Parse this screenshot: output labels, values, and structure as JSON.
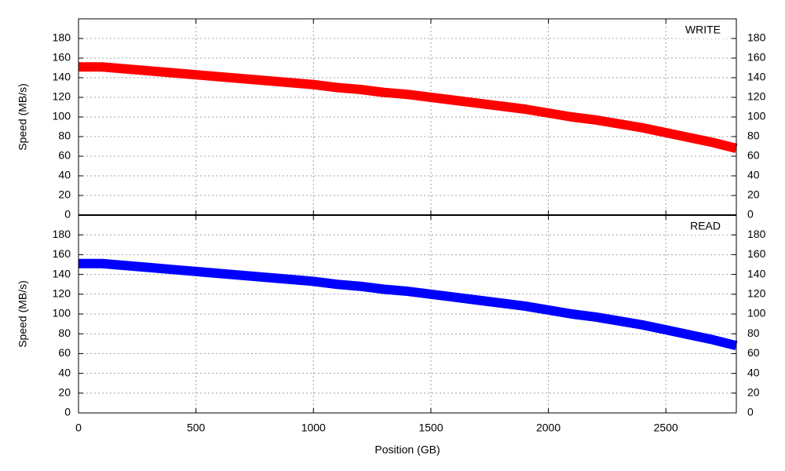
{
  "chart_data": [
    {
      "type": "line",
      "ylabel": "Speed (MB/s)",
      "x": [
        0,
        100,
        200,
        300,
        400,
        500,
        600,
        700,
        800,
        900,
        1000,
        1100,
        1200,
        1300,
        1400,
        1500,
        1600,
        1700,
        1800,
        1900,
        2000,
        2100,
        2200,
        2300,
        2400,
        2500,
        2600,
        2700,
        2800
      ],
      "series": [
        {
          "name": "WRITE",
          "color": "#ff0000",
          "values": [
            151,
            151,
            149,
            147,
            145,
            143,
            141,
            139,
            137,
            135,
            133,
            130,
            128,
            125,
            123,
            120,
            117,
            114,
            111,
            108,
            104,
            100,
            97,
            93,
            89,
            84,
            79,
            74,
            68
          ]
        }
      ],
      "xlim": [
        0,
        2800
      ],
      "xticks": [
        0,
        500,
        1000,
        1500,
        2000,
        2500
      ],
      "ylim": [
        0,
        200
      ],
      "yticks": [
        0,
        20,
        40,
        60,
        80,
        100,
        120,
        140,
        160,
        180
      ],
      "y2lim": [
        0,
        200
      ],
      "y2ticks": [
        0,
        20,
        40,
        60,
        80,
        100,
        120,
        140,
        160,
        180
      ],
      "grid": true,
      "legend": "upper right"
    },
    {
      "type": "line",
      "ylabel": "Speed (MB/s)",
      "xlabel": "Position (GB)",
      "x": [
        0,
        100,
        200,
        300,
        400,
        500,
        600,
        700,
        800,
        900,
        1000,
        1100,
        1200,
        1300,
        1400,
        1500,
        1600,
        1700,
        1800,
        1900,
        2000,
        2100,
        2200,
        2300,
        2400,
        2500,
        2600,
        2700,
        2800
      ],
      "series": [
        {
          "name": "READ",
          "color": "#0000ff",
          "values": [
            151,
            151,
            149,
            147,
            145,
            143,
            141,
            139,
            137,
            135,
            133,
            130,
            128,
            125,
            123,
            120,
            117,
            114,
            111,
            108,
            104,
            100,
            97,
            93,
            89,
            84,
            79,
            74,
            68
          ]
        }
      ],
      "xlim": [
        0,
        2800
      ],
      "xticks": [
        0,
        500,
        1000,
        1500,
        2000,
        2500
      ],
      "ylim": [
        0,
        200
      ],
      "yticks": [
        0,
        20,
        40,
        60,
        80,
        100,
        120,
        140,
        160,
        180
      ],
      "y2lim": [
        0,
        200
      ],
      "y2ticks": [
        0,
        20,
        40,
        60,
        80,
        100,
        120,
        140,
        160,
        180
      ],
      "grid": true,
      "legend": "upper right"
    }
  ]
}
